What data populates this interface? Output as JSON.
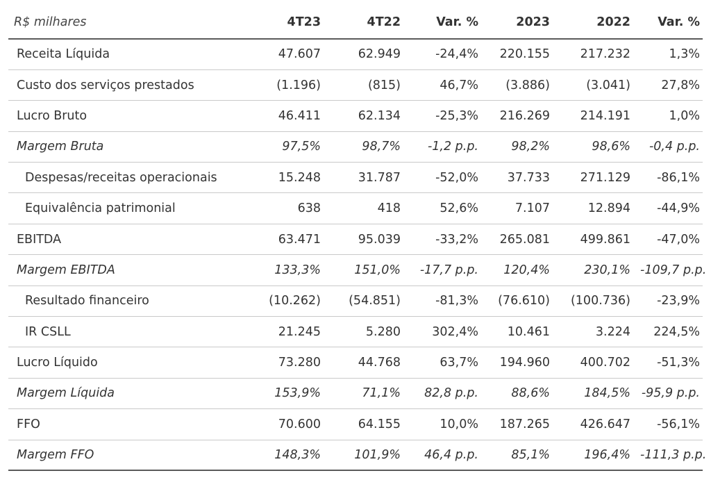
{
  "table": {
    "headers": [
      "R$ milhares",
      "4T23",
      "4T22",
      "Var. %",
      "2023",
      "2022",
      "Var. %"
    ],
    "rows": [
      {
        "label": "Receita Líquida",
        "style": "normal",
        "values": [
          "47.607",
          "62.949",
          "-24,4%",
          "220.155",
          "217.232",
          "1,3%"
        ]
      },
      {
        "label": "Custo dos serviços prestados",
        "style": "normal",
        "values": [
          "(1.196)",
          "(815)",
          "46,7%",
          "(3.886)",
          "(3.041)",
          "27,8%"
        ]
      },
      {
        "label": "Lucro Bruto",
        "style": "normal",
        "values": [
          "46.411",
          "62.134",
          "-25,3%",
          "216.269",
          "214.191",
          "1,0%"
        ]
      },
      {
        "label": "Margem Bruta",
        "style": "italic",
        "values": [
          "97,5%",
          "98,7%",
          "-1,2 p.p.",
          "98,2%",
          "98,6%",
          "-0,4 p.p."
        ]
      },
      {
        "label": "Despesas/receitas operacionais",
        "style": "indent",
        "values": [
          "15.248",
          "31.787",
          "-52,0%",
          "37.733",
          "271.129",
          "-86,1%"
        ]
      },
      {
        "label": "Equivalência patrimonial",
        "style": "indent",
        "values": [
          "638",
          "418",
          "52,6%",
          "7.107",
          "12.894",
          "-44,9%"
        ]
      },
      {
        "label": "EBITDA",
        "style": "normal",
        "values": [
          "63.471",
          "95.039",
          "-33,2%",
          "265.081",
          "499.861",
          "-47,0%"
        ]
      },
      {
        "label": "Margem EBITDA",
        "style": "italic",
        "values": [
          "133,3%",
          "151,0%",
          "-17,7 p.p.",
          "120,4%",
          "230,1%",
          "-109,7 p.p."
        ]
      },
      {
        "label": "Resultado financeiro",
        "style": "indent",
        "values": [
          "(10.262)",
          "(54.851)",
          "-81,3%",
          "(76.610)",
          "(100.736)",
          "-23,9%"
        ]
      },
      {
        "label": "IR CSLL",
        "style": "indent",
        "values": [
          "21.245",
          "5.280",
          "302,4%",
          "10.461",
          "3.224",
          "224,5%"
        ]
      },
      {
        "label": "Lucro Líquido",
        "style": "normal",
        "values": [
          "73.280",
          "44.768",
          "63,7%",
          "194.960",
          "400.702",
          "-51,3%"
        ]
      },
      {
        "label": "Margem Líquida",
        "style": "italic",
        "values": [
          "153,9%",
          "71,1%",
          "82,8 p.p.",
          "88,6%",
          "184,5%",
          "-95,9 p.p."
        ]
      },
      {
        "label": "FFO",
        "style": "normal",
        "values": [
          "70.600",
          "64.155",
          "10,0%",
          "187.265",
          "426.647",
          "-56,1%"
        ]
      },
      {
        "label": "Margem FFO",
        "style": "italic",
        "values": [
          "148,3%",
          "101,9%",
          "46,4 p.p.",
          "85,1%",
          "196,4%",
          "-111,3 p.p."
        ]
      }
    ]
  }
}
